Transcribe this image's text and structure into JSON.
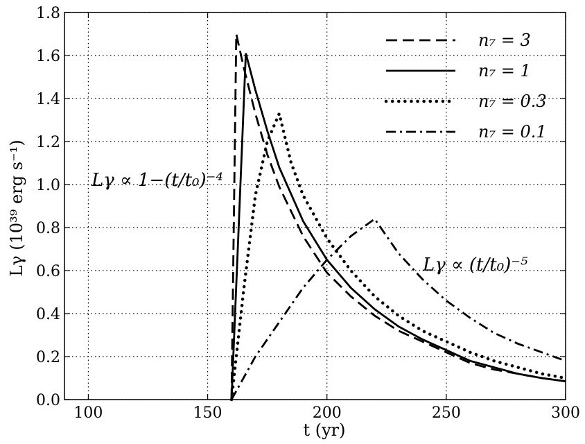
{
  "chart_data": {
    "type": "line",
    "xlabel": "t (yr)",
    "ylabel": "Lγ (10³⁹ erg s⁻¹)",
    "xlim": [
      90,
      300
    ],
    "ylim": [
      0,
      1.8
    ],
    "x_ticks": [
      "100",
      "150",
      "200",
      "250",
      "300"
    ],
    "y_ticks": [
      "0.0",
      "0.2",
      "0.4",
      "0.6",
      "0.8",
      "1.0",
      "1.2",
      "1.4",
      "1.6",
      "1.8"
    ],
    "grid": true,
    "legend_position": "top-right",
    "annotations": {
      "rise": "Lγ ∝ 1−(t/t₀)⁻⁴",
      "decay": "Lγ ∝ (t/t₀)⁻⁵"
    },
    "series": [
      {
        "name": "n₇ = 3",
        "style": "dashed",
        "x": [
          160,
          162,
          165,
          170,
          175,
          180,
          190,
          200,
          210,
          220,
          230,
          240,
          250,
          260,
          270,
          280,
          290,
          300
        ],
        "y": [
          0,
          1.7,
          1.55,
          1.33,
          1.14,
          0.99,
          0.76,
          0.59,
          0.48,
          0.39,
          0.32,
          0.27,
          0.22,
          0.17,
          0.14,
          0.12,
          0.1,
          0.085
        ]
      },
      {
        "name": "n₇ = 1",
        "style": "solid",
        "x": [
          160,
          163,
          166,
          170,
          175,
          180,
          190,
          200,
          210,
          220,
          230,
          240,
          250,
          260,
          270,
          280,
          290,
          300
        ],
        "y": [
          0,
          0.8,
          1.61,
          1.44,
          1.25,
          1.08,
          0.83,
          0.65,
          0.52,
          0.42,
          0.34,
          0.28,
          0.23,
          0.18,
          0.15,
          0.12,
          0.1,
          0.085
        ]
      },
      {
        "name": "n₇ = 0.3",
        "style": "dotted",
        "x": [
          160,
          165,
          170,
          175,
          180,
          185,
          190,
          200,
          210,
          220,
          230,
          240,
          250,
          260,
          270,
          280,
          290,
          300
        ],
        "y": [
          0,
          0.5,
          0.95,
          1.2,
          1.33,
          1.1,
          0.95,
          0.75,
          0.6,
          0.48,
          0.39,
          0.32,
          0.27,
          0.22,
          0.18,
          0.15,
          0.12,
          0.1
        ]
      },
      {
        "name": "n₇ = 0.1",
        "style": "dashdot",
        "x": [
          160,
          170,
          180,
          190,
          200,
          210,
          220,
          230,
          240,
          250,
          260,
          270,
          280,
          290,
          300
        ],
        "y": [
          0,
          0.2,
          0.36,
          0.52,
          0.65,
          0.76,
          0.84,
          0.68,
          0.56,
          0.46,
          0.38,
          0.31,
          0.26,
          0.22,
          0.18
        ]
      }
    ]
  }
}
